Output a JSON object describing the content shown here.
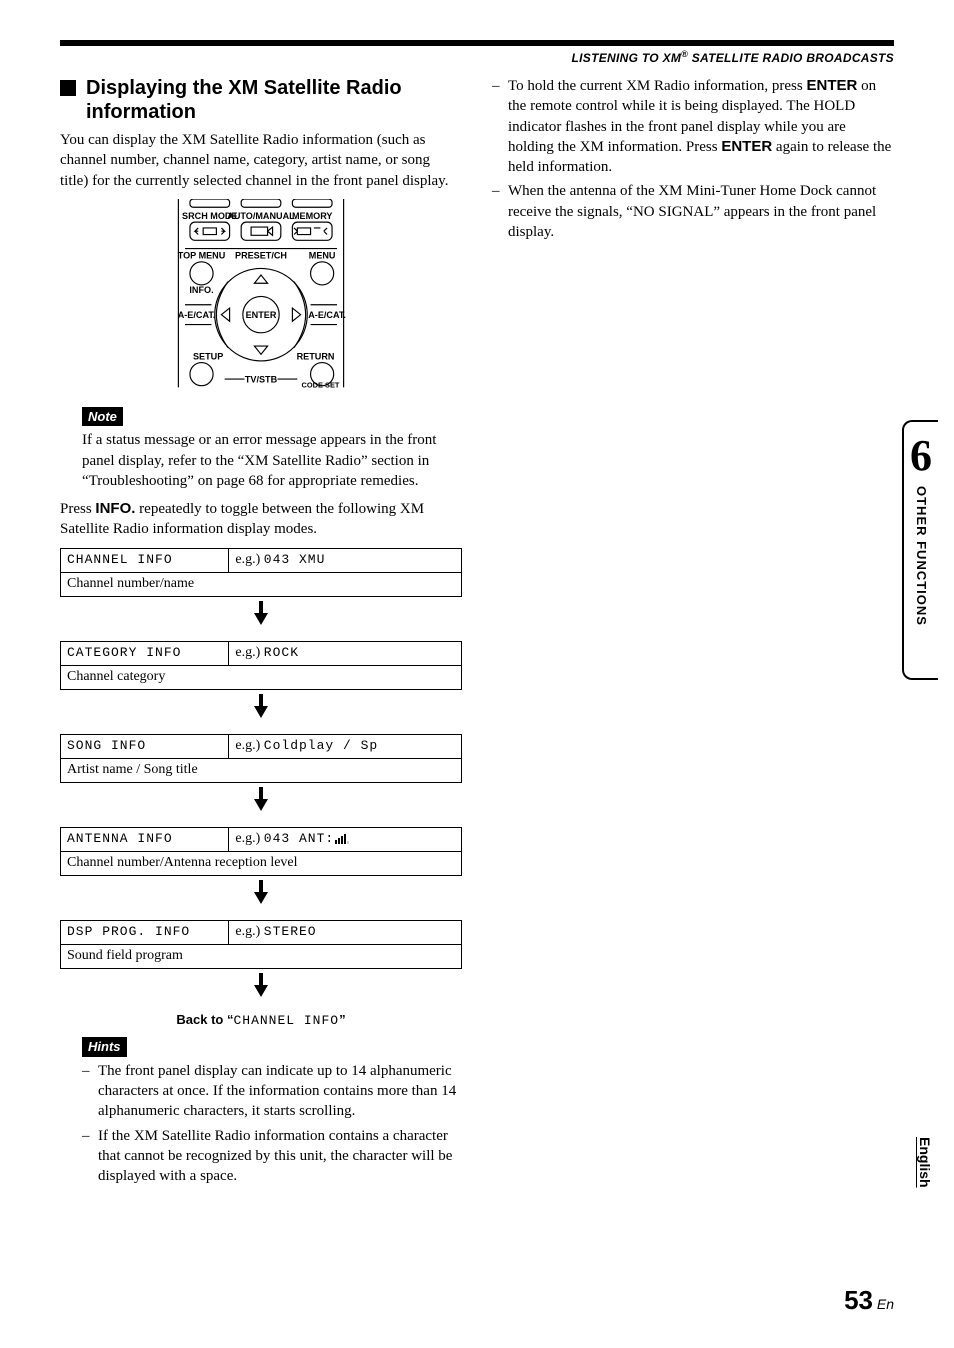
{
  "header": {
    "breadcrumb_prefix": "LISTENING TO XM",
    "breadcrumb_suffix": " SATELLITE RADIO BROADCASTS"
  },
  "left": {
    "title": "Displaying the XM Satellite Radio information",
    "intro": "You can display the XM Satellite Radio information (such as channel number, channel name, category, artist name, or song title) for the currently selected channel in the front panel display.",
    "note_label": "Note",
    "note_text": "If a status message or an error message appears in the front panel display, refer to the “XM Satellite Radio” section in “Troubleshooting” on page 68 for appropriate remedies.",
    "press_prefix": "Press ",
    "press_bold": "INFO.",
    "press_suffix": " repeatedly to toggle between the following XM Satellite Radio information display modes.",
    "modes": [
      {
        "label": "CHANNEL INFO",
        "eg": "e.g.) 043 XMU",
        "desc": "Channel number/name"
      },
      {
        "label": "CATEGORY INFO",
        "eg": "e.g.) ROCK",
        "desc": "Channel category"
      },
      {
        "label": "SONG INFO",
        "eg": "e.g.) Coldplay / Sp",
        "desc": "Artist name / Song title"
      },
      {
        "label": "ANTENNA INFO",
        "eg": "e.g.) 043 ANT:",
        "desc": "Channel number/Antenna reception level",
        "bars": true
      },
      {
        "label": "DSP PROG. INFO",
        "eg": "e.g.) STEREO",
        "desc": "Sound field program"
      }
    ],
    "back_to_prefix": "Back to “",
    "back_to_value": "CHANNEL INFO",
    "back_to_suffix": "”",
    "hints_label": "Hints",
    "hints": [
      "The front panel display can indicate up to 14 alphanumeric characters at once. If the information contains more than 14 alphanumeric characters, it starts scrolling.",
      "If the XM Satellite Radio information contains a character that cannot be recognized by this unit, the character will be displayed with a space."
    ]
  },
  "right": {
    "items": [
      {
        "prefix": "To hold the current XM Radio information, press ",
        "b1": "ENTER",
        "mid": " on the remote control while it is being displayed. The HOLD indicator flashes in the front panel display while you are holding the XM information. Press ",
        "b2": "ENTER",
        "suffix": " again to release the held information."
      },
      {
        "text": "When the antenna of the XM Mini-Tuner Home Dock cannot receive the signals, “NO SIGNAL” appears in the front panel display."
      }
    ]
  },
  "remote": {
    "btn_srch": "SRCH MODE",
    "btn_auto": "AUTO/MANUAL",
    "btn_memory": "MEMORY",
    "top_menu": "TOP MENU",
    "preset": "PRESET/CH",
    "menu": "MENU",
    "info": "INFO.",
    "enter": "ENTER",
    "aecat": "A-E/CAT.",
    "setup": "SETUP",
    "return": "RETURN",
    "tvstb": "TV/STB",
    "codeset": "CODE SET"
  },
  "side": {
    "number": "6",
    "label": "OTHER FUNCTIONS"
  },
  "lang": "English",
  "page": {
    "num": "53",
    "suffix": " En"
  }
}
